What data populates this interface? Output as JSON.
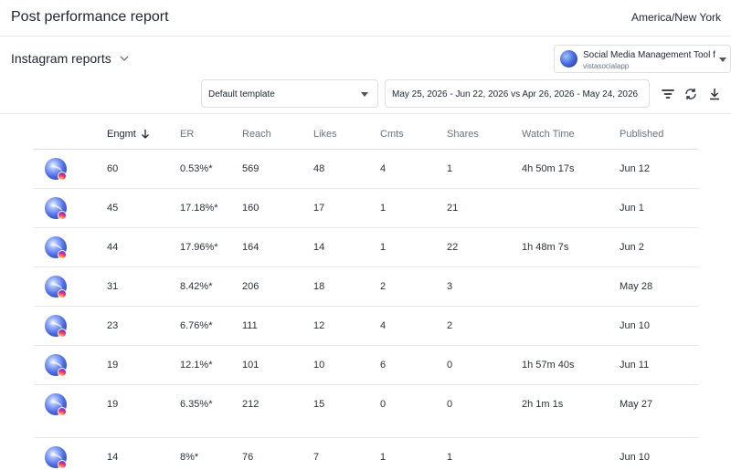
{
  "header": {
    "title": "Post performance report",
    "timezone": "America/New York"
  },
  "reports": {
    "label": "Instagram reports"
  },
  "account": {
    "name": "Social Media Management Tool f",
    "handle": "vistasocialapp"
  },
  "template": {
    "selected": "Default template"
  },
  "date_range": {
    "label": "May 25, 2026 - Jun 22, 2026 vs Apr 26, 2026 - May 24, 2026"
  },
  "toolbar": {
    "filter_icon": "filter-icon",
    "refresh_icon": "refresh-icon",
    "download_icon": "download-icon"
  },
  "table": {
    "columns": [
      "Engmt",
      "ER",
      "Reach",
      "Likes",
      "Cmts",
      "Shares",
      "Watch Time",
      "Published"
    ],
    "sorted_column": "Engmt",
    "sort_direction": "descending",
    "rows": [
      {
        "engmt": "60",
        "er": "0.53%*",
        "reach": "569",
        "likes": "48",
        "cmts": "4",
        "shares": "1",
        "watch": "4h 50m 17s",
        "published": "Jun 12"
      },
      {
        "engmt": "45",
        "er": "17.18%*",
        "reach": "160",
        "likes": "17",
        "cmts": "1",
        "shares": "21",
        "watch": "",
        "published": "Jun 1"
      },
      {
        "engmt": "44",
        "er": "17.96%*",
        "reach": "164",
        "likes": "14",
        "cmts": "1",
        "shares": "22",
        "watch": "1h 48m 7s",
        "published": "Jun 2"
      },
      {
        "engmt": "31",
        "er": "8.42%*",
        "reach": "206",
        "likes": "18",
        "cmts": "2",
        "shares": "3",
        "watch": "",
        "published": "May 28"
      },
      {
        "engmt": "23",
        "er": "6.76%*",
        "reach": "111",
        "likes": "12",
        "cmts": "4",
        "shares": "2",
        "watch": "",
        "published": "Jun 10"
      },
      {
        "engmt": "19",
        "er": "12.1%*",
        "reach": "101",
        "likes": "10",
        "cmts": "6",
        "shares": "0",
        "watch": "1h 57m 40s",
        "published": "Jun 11"
      },
      {
        "engmt": "19",
        "er": "6.35%*",
        "reach": "212",
        "likes": "15",
        "cmts": "0",
        "shares": "0",
        "watch": "2h 1m 1s",
        "published": "May 27"
      },
      {
        "engmt": "14",
        "er": "8%*",
        "reach": "76",
        "likes": "7",
        "cmts": "1",
        "shares": "1",
        "watch": "",
        "published": "Jun 10"
      }
    ]
  }
}
